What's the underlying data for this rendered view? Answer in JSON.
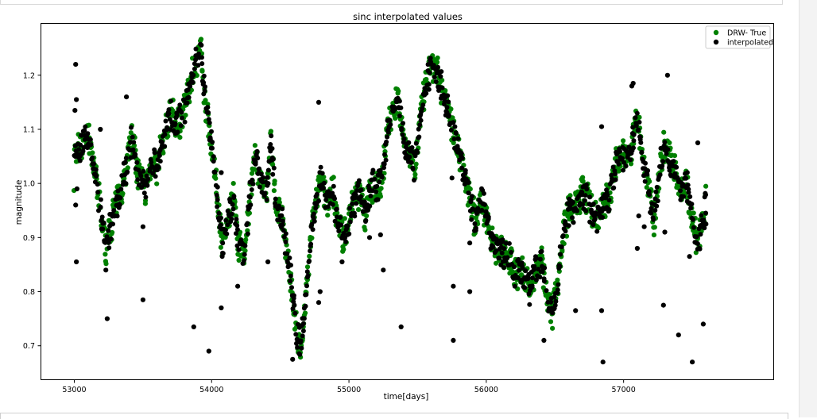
{
  "chart_data": {
    "type": "scatter",
    "title": "sinc interpolated values",
    "xlabel": "time[days]",
    "ylabel": "magnitude",
    "xlim": [
      52760,
      58090
    ],
    "ylim": [
      0.638,
      1.295
    ],
    "xticks": [
      53000,
      54000,
      55000,
      56000,
      57000
    ],
    "yticks": [
      0.7,
      0.8,
      0.9,
      1.0,
      1.1,
      1.2
    ],
    "grid": false,
    "legend_position": "top-right",
    "series": [
      {
        "name": "DRW- True",
        "color": "#008000",
        "anchor_points": [
          [
            53000,
            1.05
          ],
          [
            53050,
            1.07
          ],
          [
            53100,
            1.09
          ],
          [
            53150,
            1.02
          ],
          [
            53200,
            0.93
          ],
          [
            53230,
            0.88
          ],
          [
            53280,
            0.94
          ],
          [
            53320,
            0.97
          ],
          [
            53370,
            1.02
          ],
          [
            53420,
            1.09
          ],
          [
            53470,
            1.01
          ],
          [
            53520,
            0.99
          ],
          [
            53560,
            1.04
          ],
          [
            53600,
            1.03
          ],
          [
            53650,
            1.08
          ],
          [
            53700,
            1.13
          ],
          [
            53750,
            1.11
          ],
          [
            53800,
            1.13
          ],
          [
            53850,
            1.19
          ],
          [
            53880,
            1.22
          ],
          [
            53920,
            1.25
          ],
          [
            53950,
            1.16
          ],
          [
            54000,
            1.07
          ],
          [
            54040,
            0.98
          ],
          [
            54080,
            0.88
          ],
          [
            54120,
            0.94
          ],
          [
            54160,
            0.97
          ],
          [
            54200,
            0.88
          ],
          [
            54240,
            0.87
          ],
          [
            54280,
            0.98
          ],
          [
            54320,
            1.05
          ],
          [
            54360,
            1.01
          ],
          [
            54400,
            0.98
          ],
          [
            54430,
            1.08
          ],
          [
            54470,
            0.96
          ],
          [
            54510,
            0.93
          ],
          [
            54550,
            0.88
          ],
          [
            54590,
            0.79
          ],
          [
            54620,
            0.72
          ],
          [
            54650,
            0.7
          ],
          [
            54690,
            0.8
          ],
          [
            54730,
            0.92
          ],
          [
            54770,
            0.98
          ],
          [
            54800,
            1.01
          ],
          [
            54840,
            0.96
          ],
          [
            54880,
            0.99
          ],
          [
            54920,
            0.93
          ],
          [
            54960,
            0.9
          ],
          [
            55000,
            0.93
          ],
          [
            55040,
            0.97
          ],
          [
            55080,
            0.98
          ],
          [
            55120,
            0.94
          ],
          [
            55160,
            1.0
          ],
          [
            55200,
            0.99
          ],
          [
            55240,
            1.01
          ],
          [
            55280,
            1.09
          ],
          [
            55320,
            1.14
          ],
          [
            55360,
            1.16
          ],
          [
            55400,
            1.08
          ],
          [
            55440,
            1.06
          ],
          [
            55480,
            1.03
          ],
          [
            55520,
            1.12
          ],
          [
            55560,
            1.18
          ],
          [
            55600,
            1.22
          ],
          [
            55650,
            1.2
          ],
          [
            55700,
            1.16
          ],
          [
            55750,
            1.11
          ],
          [
            55800,
            1.06
          ],
          [
            55840,
            1.02
          ],
          [
            55880,
            0.97
          ],
          [
            55920,
            0.93
          ],
          [
            55960,
            0.97
          ],
          [
            56000,
            0.94
          ],
          [
            56040,
            0.89
          ],
          [
            56080,
            0.88
          ],
          [
            56120,
            0.87
          ],
          [
            56160,
            0.87
          ],
          [
            56200,
            0.83
          ],
          [
            56240,
            0.84
          ],
          [
            56280,
            0.83
          ],
          [
            56320,
            0.8
          ],
          [
            56360,
            0.84
          ],
          [
            56400,
            0.86
          ],
          [
            56440,
            0.8
          ],
          [
            56480,
            0.76
          ],
          [
            56520,
            0.82
          ],
          [
            56560,
            0.91
          ],
          [
            56600,
            0.95
          ],
          [
            56650,
            0.96
          ],
          [
            56700,
            0.99
          ],
          [
            56750,
            0.96
          ],
          [
            56800,
            0.93
          ],
          [
            56850,
            0.96
          ],
          [
            56900,
            0.98
          ],
          [
            56950,
            1.04
          ],
          [
            57000,
            1.05
          ],
          [
            57050,
            1.06
          ],
          [
            57100,
            1.12
          ],
          [
            57140,
            1.05
          ],
          [
            57180,
            0.99
          ],
          [
            57220,
            0.93
          ],
          [
            57260,
            1.02
          ],
          [
            57300,
            1.07
          ],
          [
            57340,
            1.04
          ],
          [
            57380,
            1.02
          ],
          [
            57420,
            0.99
          ],
          [
            57460,
            1.0
          ],
          [
            57500,
            0.93
          ],
          [
            57540,
            0.89
          ],
          [
            57580,
            0.93
          ],
          [
            57600,
            0.97
          ]
        ]
      },
      {
        "name": "interpolated",
        "color": "#000000",
        "outliers": [
          [
            53010,
            1.22
          ],
          [
            53015,
            1.155
          ],
          [
            53005,
            1.135
          ],
          [
            53020,
            0.99
          ],
          [
            53010,
            0.96
          ],
          [
            53015,
            0.855
          ],
          [
            53190,
            1.1
          ],
          [
            53230,
            0.84
          ],
          [
            53240,
            0.75
          ],
          [
            53380,
            1.16
          ],
          [
            53500,
            0.785
          ],
          [
            53500,
            0.92
          ],
          [
            53870,
            0.735
          ],
          [
            53980,
            0.69
          ],
          [
            54070,
            1.02
          ],
          [
            54070,
            0.77
          ],
          [
            54190,
            0.81
          ],
          [
            54410,
            0.855
          ],
          [
            54590,
            0.675
          ],
          [
            54780,
            1.15
          ],
          [
            54790,
            0.8
          ],
          [
            54780,
            0.78
          ],
          [
            54950,
            0.855
          ],
          [
            55150,
            0.9
          ],
          [
            55230,
            0.905
          ],
          [
            55250,
            0.84
          ],
          [
            55380,
            0.735
          ],
          [
            55750,
            1.01
          ],
          [
            55760,
            0.81
          ],
          [
            55760,
            0.71
          ],
          [
            55880,
            0.8
          ],
          [
            55880,
            0.89
          ],
          [
            56420,
            0.71
          ],
          [
            56650,
            0.765
          ],
          [
            56840,
            0.765
          ],
          [
            56850,
            0.67
          ],
          [
            56840,
            1.105
          ],
          [
            57060,
            1.18
          ],
          [
            57070,
            1.185
          ],
          [
            57100,
            0.88
          ],
          [
            57110,
            0.94
          ],
          [
            57150,
            0.92
          ],
          [
            57290,
            0.775
          ],
          [
            57320,
            1.2
          ],
          [
            57400,
            0.72
          ],
          [
            57480,
            0.865
          ],
          [
            57500,
            0.67
          ],
          [
            57580,
            0.74
          ],
          [
            57600,
            0.925
          ],
          [
            57540,
            1.075
          ],
          [
            57300,
            0.91
          ]
        ]
      }
    ]
  }
}
